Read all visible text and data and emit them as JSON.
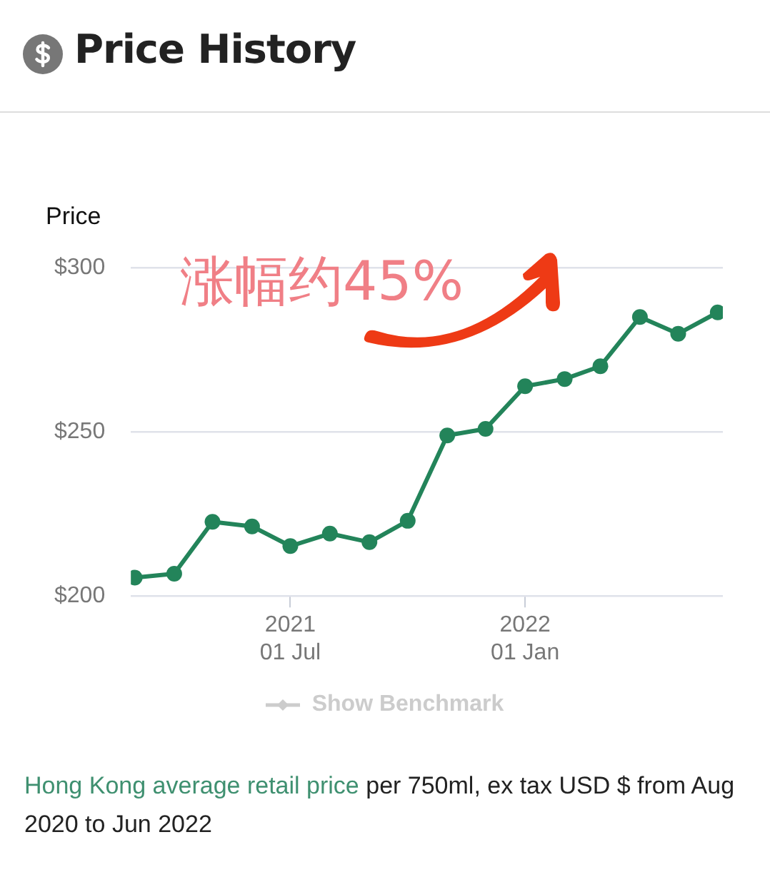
{
  "chart_data": {
    "type": "line",
    "title": "Price History",
    "ylabel": "Price",
    "x": [
      "2021-03",
      "2021-04",
      "2021-05",
      "2021-06",
      "2021-07",
      "2021-08",
      "2021-09",
      "2021-10",
      "2021-11",
      "2021-12",
      "2022-01",
      "2022-02",
      "2022-03",
      "2022-04",
      "2022-05",
      "2022-06"
    ],
    "series": [
      {
        "color": "#23845a",
        "values": [
          205.6,
          206.8,
          222.6,
          221.2,
          215.2,
          219.0,
          216.4,
          222.9,
          248.9,
          250.9,
          263.9,
          266.1,
          270.0,
          285.0,
          279.9,
          286.4
        ]
      }
    ],
    "xlim": [
      "2021-02-26",
      "2022-06-05"
    ],
    "xticks": [
      {
        "value": "2021-07-01",
        "label": "2021\n01 Jul"
      },
      {
        "value": "2022-01-01",
        "label": "2022\n01 Jan"
      }
    ],
    "ylim": [
      200,
      300
    ],
    "yticks": [
      {
        "value": 200,
        "label": "$200"
      },
      {
        "value": 250,
        "label": "$250"
      },
      {
        "value": 300,
        "label": "$300"
      }
    ],
    "grid": "y",
    "legend": false,
    "marker": "circle",
    "line_style": "solid",
    "annotations": [
      "涨幅约45%",
      "Show Benchmark",
      "Hong Kong average retail price",
      "per 750ml, ex tax USD $ from Aug 2020 to Jun 2022"
    ]
  }
}
